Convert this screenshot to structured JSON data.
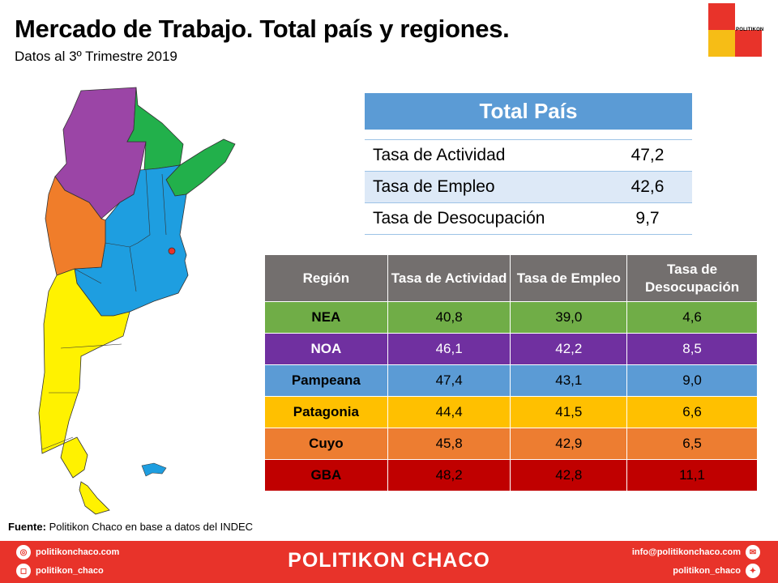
{
  "header": {
    "title": "Mercado de Trabajo. Total país y regiones.",
    "subtitle": "Datos al 3º Trimestre 2019",
    "logo_text": "POLITIKON"
  },
  "colors": {
    "NEA": "#70ad47",
    "NOA": "#7030a0",
    "Pampeana": "#5b9bd5",
    "Patagonia": "#ffc000",
    "Cuyo": "#ed7d31",
    "GBA": "#c00000",
    "map_nea": "#22b04b",
    "map_noa": "#9b45a6",
    "map_pampeana": "#1e9ee0",
    "map_cuyo": "#f07d2a",
    "map_patagonia": "#fff200",
    "map_gba": "#e8332a"
  },
  "total_pais": {
    "title": "Total País",
    "rows": [
      {
        "label": "Tasa de Actividad",
        "value": "47,2"
      },
      {
        "label": "Tasa de Empleo",
        "value": "42,6"
      },
      {
        "label": "Tasa de Desocupación",
        "value": "9,7"
      }
    ]
  },
  "regions_table": {
    "headers": [
      "Región",
      "Tasa de Actividad",
      "Tasa de Empleo",
      "Tasa de Desocupación"
    ],
    "rows": [
      {
        "region": "NEA",
        "actividad": "40,8",
        "empleo": "39,0",
        "desocupacion": "4,6",
        "color": "#70ad47",
        "text_color": "#000000"
      },
      {
        "region": "NOA",
        "actividad": "46,1",
        "empleo": "42,2",
        "desocupacion": "8,5",
        "color": "#7030a0",
        "text_color": "#ffffff"
      },
      {
        "region": "Pampeana",
        "actividad": "47,4",
        "empleo": "43,1",
        "desocupacion": "9,0",
        "color": "#5b9bd5",
        "text_color": "#000000"
      },
      {
        "region": "Patagonia",
        "actividad": "44,4",
        "empleo": "41,5",
        "desocupacion": "6,6",
        "color": "#ffc000",
        "text_color": "#000000"
      },
      {
        "region": "Cuyo",
        "actividad": "45,8",
        "empleo": "42,9",
        "desocupacion": "6,5",
        "color": "#ed7d31",
        "text_color": "#000000"
      },
      {
        "region": "GBA",
        "actividad": "48,2",
        "empleo": "42,8",
        "desocupacion": "11,1",
        "color": "#c00000",
        "text_color": "#000000"
      }
    ]
  },
  "source": {
    "label": "Fuente:",
    "text": " Politikon Chaco en base a datos del INDEC"
  },
  "footer": {
    "brand": "POLITIKON CHACO",
    "website": "politikonchaco.com",
    "instagram": "politikon_chaco",
    "email": "info@politikonchaco.com",
    "twitter": "politikon_chaco",
    "icons": [
      "globe-icon",
      "instagram-icon",
      "mail-icon",
      "twitter-icon"
    ]
  }
}
